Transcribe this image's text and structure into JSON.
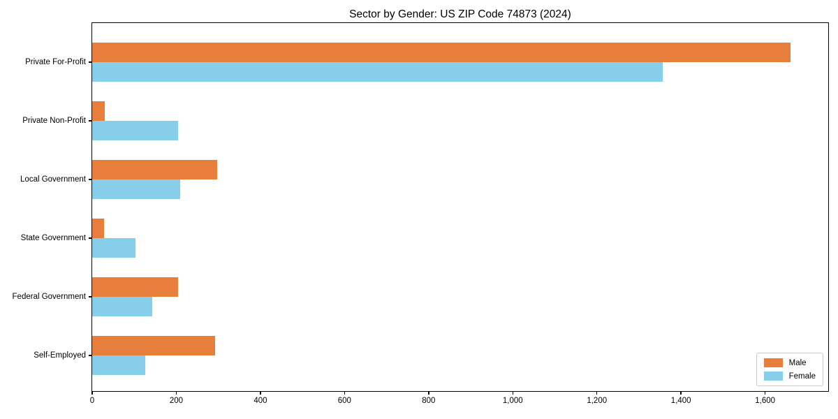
{
  "chart_data": {
    "type": "bar",
    "orientation": "horizontal",
    "title": "Sector by Gender: US ZIP Code 74873 (2024)",
    "categories": [
      "Private For-Profit",
      "Private Non-Profit",
      "Local Government",
      "State Government",
      "Federal Government",
      "Self-Employed"
    ],
    "series": [
      {
        "name": "Male",
        "color": "#e87e3c",
        "values": [
          1660,
          30,
          298,
          29,
          205,
          292
        ]
      },
      {
        "name": "Female",
        "color": "#87ceeb",
        "values": [
          1357,
          204,
          209,
          103,
          143,
          127
        ]
      }
    ],
    "xlabel": "",
    "ylabel": "",
    "xlim": [
      0,
      1750
    ],
    "x_ticks": [
      0,
      200,
      400,
      600,
      800,
      1000,
      1200,
      1400,
      1600
    ],
    "x_tick_labels": [
      "0",
      "200",
      "400",
      "600",
      "800",
      "1,000",
      "1,200",
      "1,400",
      "1,600"
    ],
    "grid": false,
    "legend": {
      "position": "lower right",
      "entries": [
        "Male",
        "Female"
      ]
    }
  }
}
